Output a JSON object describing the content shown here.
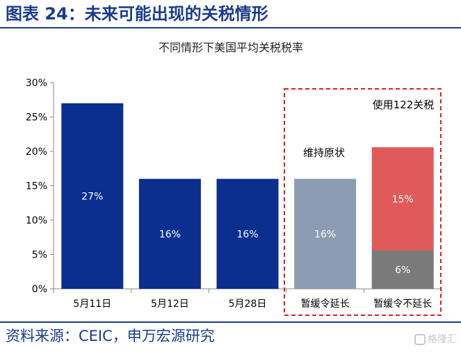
{
  "page": {
    "figure_title": "图表 24：未来可能出现的关税情形",
    "source": "资料来源：CEIC，申万宏源研究",
    "watermark": "格隆汇"
  },
  "colors": {
    "title_blue": "#1a3c8c",
    "navy_bar": "#0a2f8f",
    "gray_blue_bar": "#8a9bb2",
    "red_segment": "#e05a5a",
    "gray_segment": "#7a7a7a",
    "dashed_box": "#d62020"
  },
  "chart_data": {
    "type": "bar",
    "stacked": true,
    "title": "不同情形下美国平均关税税率",
    "categories": [
      "5月11日",
      "5月12日",
      "5月28日",
      "暂缓令延长",
      "暂缓令不延长"
    ],
    "y_ticks": [
      "0%",
      "5%",
      "10%",
      "15%",
      "20%",
      "25%",
      "30%"
    ],
    "ylim": [
      0,
      30
    ],
    "grid": false,
    "bars": [
      {
        "category": "5月11日",
        "segments": [
          {
            "value": 27,
            "label": "27%",
            "color": "#0a2f8f",
            "label_color": "#ffffff"
          }
        ]
      },
      {
        "category": "5月12日",
        "segments": [
          {
            "value": 16,
            "label": "16%",
            "color": "#0a2f8f",
            "label_color": "#ffffff"
          }
        ]
      },
      {
        "category": "5月28日",
        "segments": [
          {
            "value": 16,
            "label": "16%",
            "color": "#0a2f8f",
            "label_color": "#ffffff"
          }
        ]
      },
      {
        "category": "暂缓令延长",
        "segments": [
          {
            "value": 16,
            "label": "16%",
            "color": "#8a9bb2",
            "label_color": "#ffffff"
          }
        ]
      },
      {
        "category": "暂缓令不延长",
        "segments": [
          {
            "value": 5.6,
            "label": "6%",
            "color": "#7a7a7a",
            "label_color": "#ffffff"
          },
          {
            "value": 15,
            "label": "15%",
            "color": "#e05a5a",
            "label_color": "#ffffff"
          }
        ]
      }
    ],
    "annotations": {
      "maintain": "维持原状",
      "use_122": "使用122关税"
    }
  }
}
